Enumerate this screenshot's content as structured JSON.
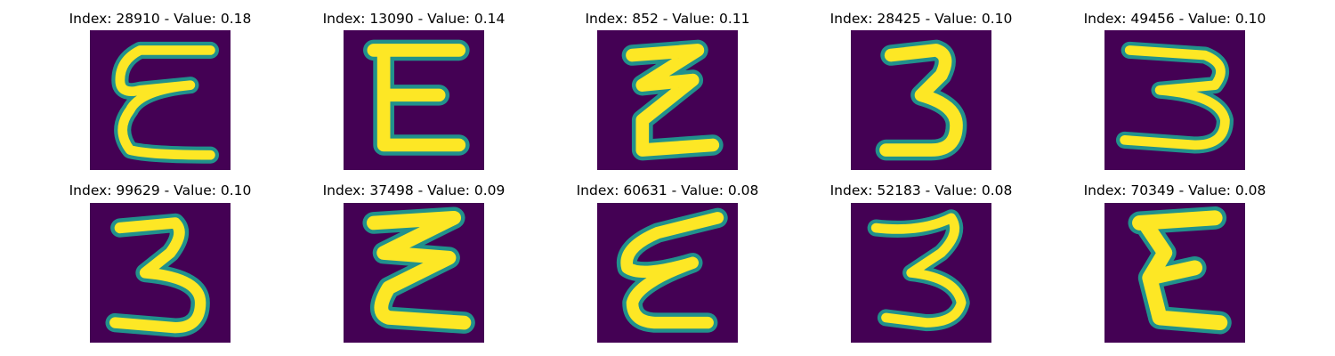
{
  "colors": {
    "background": "#440154",
    "stroke_edge": "#21918c",
    "stroke_mid": "#5ec962",
    "stroke_core": "#fde725"
  },
  "samples": [
    {
      "title": "Index: 28910 - Value: 0.18",
      "glyph": "E-curly-left"
    },
    {
      "title": "Index: 13090 - Value: 0.14",
      "glyph": "E-boxy"
    },
    {
      "title": "Index: 852 - Value: 0.11",
      "glyph": "Z-zigzag"
    },
    {
      "title": "Index: 28425 - Value: 0.10",
      "glyph": "digit-3"
    },
    {
      "title": "Index: 49456 - Value: 0.10",
      "glyph": "digit-3-wide"
    },
    {
      "title": "Index: 99629 - Value: 0.10",
      "glyph": "digit-3"
    },
    {
      "title": "Index: 37498 - Value: 0.09",
      "glyph": "Z-zigzag"
    },
    {
      "title": "Index: 60631 - Value: 0.08",
      "glyph": "E-slanted"
    },
    {
      "title": "Index: 52183 - Value: 0.08",
      "glyph": "digit-3"
    },
    {
      "title": "Index: 70349 - Value: 0.08",
      "glyph": "E-boxy"
    }
  ]
}
